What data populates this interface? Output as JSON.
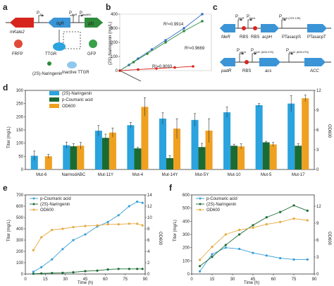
{
  "panels": {
    "a": "a",
    "b": "b",
    "c": "c",
    "d": "d",
    "e": "e",
    "f": "f"
  },
  "panel_a": {
    "promoters": [
      "P",
      "P",
      "P"
    ],
    "promoter_subs": [
      "T1",
      "ttgR",
      "ttgABC"
    ],
    "genes": [
      "mKate2",
      "ttgR",
      "gfp"
    ],
    "proteins": [
      "TTGR",
      "Inactive TTGR"
    ],
    "ligand": "(2S)-Naringenin",
    "reporters": [
      "FRFP",
      "GFP"
    ],
    "colors": {
      "red": "#d7261e",
      "blue": "#3a94d6",
      "green": "#2e8b3a",
      "grey": "#888888"
    }
  },
  "panel_c": {
    "row1": {
      "labels": [
        "P",
        "P",
        "P",
        "PTasacpS",
        "PTasacpT"
      ],
      "subs": [
        "fdeR",
        "fdeA",
        "fdeA (223-135)",
        "",
        ""
      ],
      "genes": [
        "fdeR",
        "RBS",
        "RBS",
        "acpH",
        "ACC"
      ]
    },
    "row2": {
      "labels": [
        "P",
        "P",
        "P"
      ],
      "subs": [
        "capA",
        "padC (608-476)",
        "padC (608-476)"
      ],
      "genes": [
        "padR",
        "RBS",
        "acs",
        "ACC"
      ]
    }
  },
  "chart_data": [
    {
      "panel": "b",
      "type": "scatter",
      "ylabel": "(2S)-Naringenin (mg/L)",
      "yticks": [
        "0",
        "100",
        "200",
        "300",
        "400"
      ],
      "series": [
        {
          "r2": "R²=0.9914",
          "color": "#3a6fc4",
          "x": [
            0.0,
            0.1,
            0.2,
            0.35,
            0.5,
            0.7,
            0.9
          ],
          "y": [
            0,
            40,
            85,
            150,
            215,
            300,
            400
          ]
        },
        {
          "r2": "R²=0.9669",
          "color": "#2e8b3a",
          "x": [
            0.0,
            0.15,
            0.3,
            0.5,
            0.7,
            0.9
          ],
          "y": [
            0,
            60,
            120,
            200,
            280,
            350
          ]
        },
        {
          "r2": "R²=0.9093",
          "color": "#d7261e",
          "x": [
            0.0,
            0.2,
            0.4,
            0.6,
            0.8
          ],
          "y": [
            0,
            8,
            15,
            22,
            30
          ]
        }
      ]
    },
    {
      "panel": "d",
      "type": "bar",
      "ylabel": "Titer (mg/L)",
      "y2label": "OD600",
      "ylim": [
        0,
        300
      ],
      "y2lim": [
        0,
        12
      ],
      "yticks": [
        0,
        50,
        100,
        150,
        200,
        250,
        300
      ],
      "y2ticks": [
        0,
        3,
        6,
        9,
        12
      ],
      "categories": [
        "Mut-6",
        "NarmodABC",
        "Mut-11Y",
        "Mut-4",
        "Mut-14Y",
        "Mut-5Y",
        "Mut-10",
        "Mut-5",
        "Mut-17"
      ],
      "series": [
        {
          "name": "(2S)-Naringenin",
          "color": "#2aa3de",
          "values": [
            52,
            92,
            147,
            168,
            193,
            188,
            217,
            244,
            250
          ],
          "err": [
            18,
            12,
            20,
            10,
            22,
            24,
            20,
            6,
            30
          ]
        },
        {
          "name": "p-Coumaric acid",
          "color": "#1a6b33",
          "values": [
            0,
            88,
            120,
            80,
            43,
            85,
            90,
            103,
            90
          ],
          "err": [
            0,
            10,
            14,
            4,
            10,
            14,
            6,
            4,
            8
          ]
        },
        {
          "name": "OD600",
          "color": "#f0a020",
          "axis": "right",
          "values": [
            2.0,
            3.6,
            5.6,
            9.5,
            6.2,
            5.9,
            3.5,
            3.8,
            10.8
          ],
          "err": [
            0.3,
            0.5,
            0.7,
            1.4,
            1.5,
            1.8,
            0.4,
            0.3,
            0.5
          ]
        }
      ]
    },
    {
      "panel": "e",
      "type": "line",
      "xlabel": "Time (h)",
      "ylabel": "Titer (mg/L)",
      "y2label": "OD600",
      "xlim": [
        0,
        90
      ],
      "ylim": [
        0,
        700
      ],
      "y2lim": [
        0,
        14
      ],
      "xticks": [
        0,
        15,
        30,
        45,
        60,
        75,
        90
      ],
      "yticks": [
        0,
        100,
        200,
        300,
        400,
        500,
        600,
        700
      ],
      "y2ticks": [
        0,
        2,
        4,
        6,
        8,
        10,
        12,
        14
      ],
      "series": [
        {
          "name": "p-Coumaric acid",
          "color": "#3a9fd8",
          "x": [
            6,
            12,
            20,
            28,
            36,
            45,
            54,
            62,
            70,
            78,
            84,
            88
          ],
          "y": [
            20,
            60,
            130,
            220,
            300,
            350,
            420,
            460,
            520,
            600,
            640,
            630
          ]
        },
        {
          "name": "(2S)-Naringenin",
          "color": "#1a6b33",
          "x": [
            6,
            12,
            20,
            28,
            36,
            45,
            54,
            62,
            70,
            78,
            84,
            88
          ],
          "y": [
            2,
            5,
            8,
            10,
            15,
            25,
            30,
            40,
            45,
            45,
            45,
            45
          ]
        },
        {
          "name": "OD600",
          "color": "#e7a83e",
          "axis": "right",
          "x": [
            6,
            12,
            20,
            28,
            36,
            45,
            54,
            62,
            70,
            78,
            84,
            88
          ],
          "y": [
            4.2,
            6.5,
            7.8,
            8.0,
            8.3,
            8.5,
            8.6,
            8.8,
            8.8,
            8.9,
            8.9,
            8.6
          ]
        }
      ]
    },
    {
      "panel": "f",
      "type": "line",
      "xlabel": "Time (h)",
      "ylabel": "Titer (mg/L)",
      "y2label": "OD600",
      "xlim": [
        0,
        90
      ],
      "ylim": [
        0,
        600
      ],
      "y2lim": [
        0,
        14
      ],
      "xticks": [
        0,
        15,
        30,
        45,
        60,
        75,
        90
      ],
      "yticks": [
        0,
        100,
        200,
        300,
        400,
        500,
        600
      ],
      "y2ticks": [
        0,
        3,
        6,
        9,
        12
      ],
      "series": [
        {
          "name": "p-Coumaric acid",
          "color": "#3a9fd8",
          "x": [
            6,
            15,
            25,
            35,
            45,
            55,
            65,
            75,
            85
          ],
          "y": [
            20,
            150,
            200,
            190,
            160,
            140,
            120,
            110,
            110
          ]
        },
        {
          "name": "(2S)-Naringenin",
          "color": "#1a6b33",
          "x": [
            6,
            15,
            25,
            35,
            45,
            55,
            65,
            75,
            85
          ],
          "y": [
            60,
            130,
            220,
            300,
            370,
            430,
            470,
            520,
            480
          ]
        },
        {
          "name": "OD600",
          "color": "#e7a83e",
          "axis": "right",
          "x": [
            6,
            15,
            25,
            35,
            45,
            55,
            65,
            75,
            85
          ],
          "y": [
            2.5,
            4.8,
            7.0,
            7.8,
            8.2,
            8.8,
            9.2,
            9.8,
            9.5
          ]
        }
      ]
    }
  ]
}
